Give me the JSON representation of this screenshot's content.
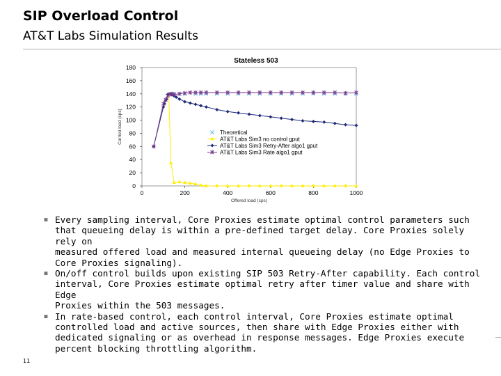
{
  "slide": {
    "title": "SIP Overload Control",
    "subtitle": "AT&T Labs Simulation Results",
    "page_number": "11",
    "bullets": [
      "Every sampling interval, Core Proxies estimate optimal control parameters such\nthat queueing delay is within a pre-defined target delay. Core Proxies solely rely on\nmeasured offered load and measured internal queueing delay (no Edge Proxies to\nCore Proxies signaling).",
      "On/off control builds upon existing SIP 503 Retry-After capability. Each control\ninterval, Core Proxies estimate optimal retry after timer value and share with Edge\nProxies within the 503 messages.",
      "In rate-based control, each control interval, Core Proxies estimate optimal\ncontrolled load and active sources, then share with Edge Proxies either with\ndedicated signaling or as overhead in response messages. Edge Proxies execute\npercent blocking throttling algorithm."
    ],
    "bullet_marker": "▪"
  },
  "chart_data": {
    "type": "line",
    "title": "Stateless 503",
    "xlabel": "Offered load (cps)",
    "ylabel": "Carried load (cps)",
    "xlim": [
      0,
      1000
    ],
    "ylim": [
      0,
      180
    ],
    "xticks": [
      0,
      200,
      400,
      600,
      800,
      1000
    ],
    "yticks": [
      0,
      20,
      40,
      60,
      80,
      100,
      120,
      140,
      160,
      180
    ],
    "grid": false,
    "legend_position": "center-right",
    "series": [
      {
        "name": "Theoretical",
        "color": "#5fb8e8",
        "marker": "x",
        "x": [
          130,
          150,
          175,
          200,
          250,
          275,
          300,
          350,
          400,
          450,
          500,
          550,
          600,
          650,
          700,
          750,
          800,
          850,
          900,
          950,
          1000
        ],
        "y": [
          140,
          140,
          140,
          140,
          140,
          140,
          140,
          140,
          140,
          140,
          140,
          140,
          140,
          140,
          140,
          140,
          140,
          140,
          140,
          140,
          140
        ]
      },
      {
        "name": "AT&T Labs Sim3 no control gput",
        "color": "#ffee00",
        "marker": "triangle",
        "x": [
          125,
          135,
          150,
          175,
          200,
          225,
          250,
          275,
          300,
          350,
          400,
          450,
          500,
          550,
          600,
          650,
          700,
          750,
          800,
          850,
          900,
          950,
          1000
        ],
        "y": [
          140,
          35,
          5,
          6,
          5,
          4,
          3,
          1,
          0,
          0,
          0,
          0,
          0,
          0,
          0,
          0,
          0,
          0,
          0,
          0,
          0,
          0,
          0
        ]
      },
      {
        "name": "AT&T Labs Sim3 Retry-After algo1 gput",
        "color": "#1f2a7a",
        "marker": "diamond",
        "x": [
          55,
          100,
          105,
          110,
          115,
          120,
          130,
          140,
          150,
          160,
          175,
          200,
          225,
          250,
          275,
          300,
          350,
          400,
          450,
          500,
          550,
          600,
          650,
          700,
          750,
          800,
          850,
          900,
          950,
          1000
        ],
        "y": [
          60,
          120,
          125,
          130,
          132,
          139,
          140,
          139,
          137,
          135,
          132,
          128,
          126,
          124,
          122,
          120,
          116,
          113,
          111,
          109,
          107,
          105,
          103,
          101,
          99,
          98,
          97,
          95,
          93,
          92
        ]
      },
      {
        "name": "AT&T Labs Sim3 Rate algo1 gput",
        "color": "#7a3b8e",
        "marker": "star",
        "x": [
          55,
          100,
          110,
          120,
          130,
          140,
          150,
          175,
          200,
          225,
          250,
          275,
          300,
          350,
          400,
          450,
          500,
          550,
          600,
          650,
          700,
          750,
          800,
          850,
          900,
          950,
          1000
        ],
        "y": [
          60,
          125,
          131,
          137,
          139,
          140,
          139,
          140,
          141,
          142,
          142,
          142,
          142,
          142,
          142,
          142,
          142,
          142,
          142,
          142,
          142,
          142,
          142,
          142,
          142,
          141,
          142
        ]
      }
    ]
  }
}
